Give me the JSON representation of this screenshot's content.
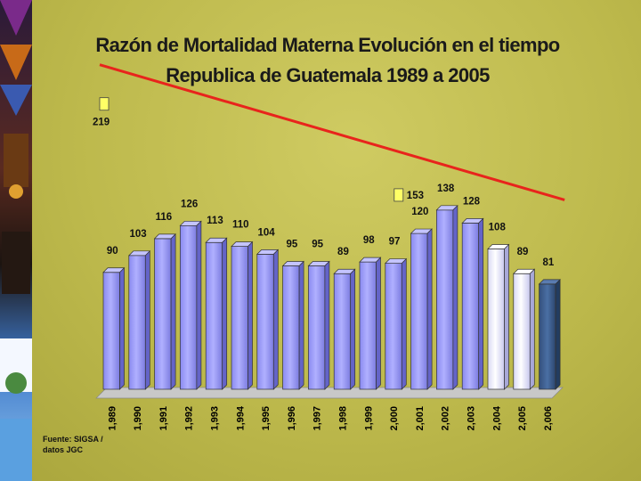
{
  "slide": {
    "title_line1": "Razón de Mortalidad Materna Evolución en el tiempo",
    "title_line2": "Republica de Guatemala 1989 a 2005",
    "source_line1": "Fuente: SIGSA /",
    "source_line2": "datos JGC"
  },
  "colors": {
    "bar_main": "#9c9cff",
    "bar_white": "#eeeeff",
    "bar_dark": "#3f5f8f",
    "trend": "#e8241c",
    "marker": "#ffff66"
  },
  "chart_data": {
    "type": "bar",
    "title": "Razón de Mortalidad Materna Evolución en el tiempo Republica de Guatemala 1989 a 2005",
    "xlabel": "",
    "ylabel": "",
    "grid": false,
    "categories": [
      "1,989",
      "1,990",
      "1,991",
      "1,992",
      "1,993",
      "1,994",
      "1,995",
      "1,996",
      "1,997",
      "1,998",
      "1,999",
      "2,000",
      "2,001",
      "2,002",
      "2,003",
      "2,004",
      "2,005",
      "2,006"
    ],
    "values": [
      90,
      103,
      116,
      126,
      113,
      110,
      104,
      95,
      95,
      89,
      98,
      97,
      120,
      138,
      128,
      108,
      89,
      81
    ],
    "bar_styles": [
      "main",
      "main",
      "main",
      "main",
      "main",
      "main",
      "main",
      "main",
      "main",
      "main",
      "main",
      "main",
      "main",
      "main",
      "main",
      "white",
      "white",
      "dark"
    ],
    "trend_line": {
      "start": {
        "x": "1,989",
        "y": 219,
        "label": "219"
      },
      "middle": {
        "x": "2,000",
        "y": 153,
        "label": "153"
      }
    },
    "ylim": [
      0,
      230
    ]
  }
}
